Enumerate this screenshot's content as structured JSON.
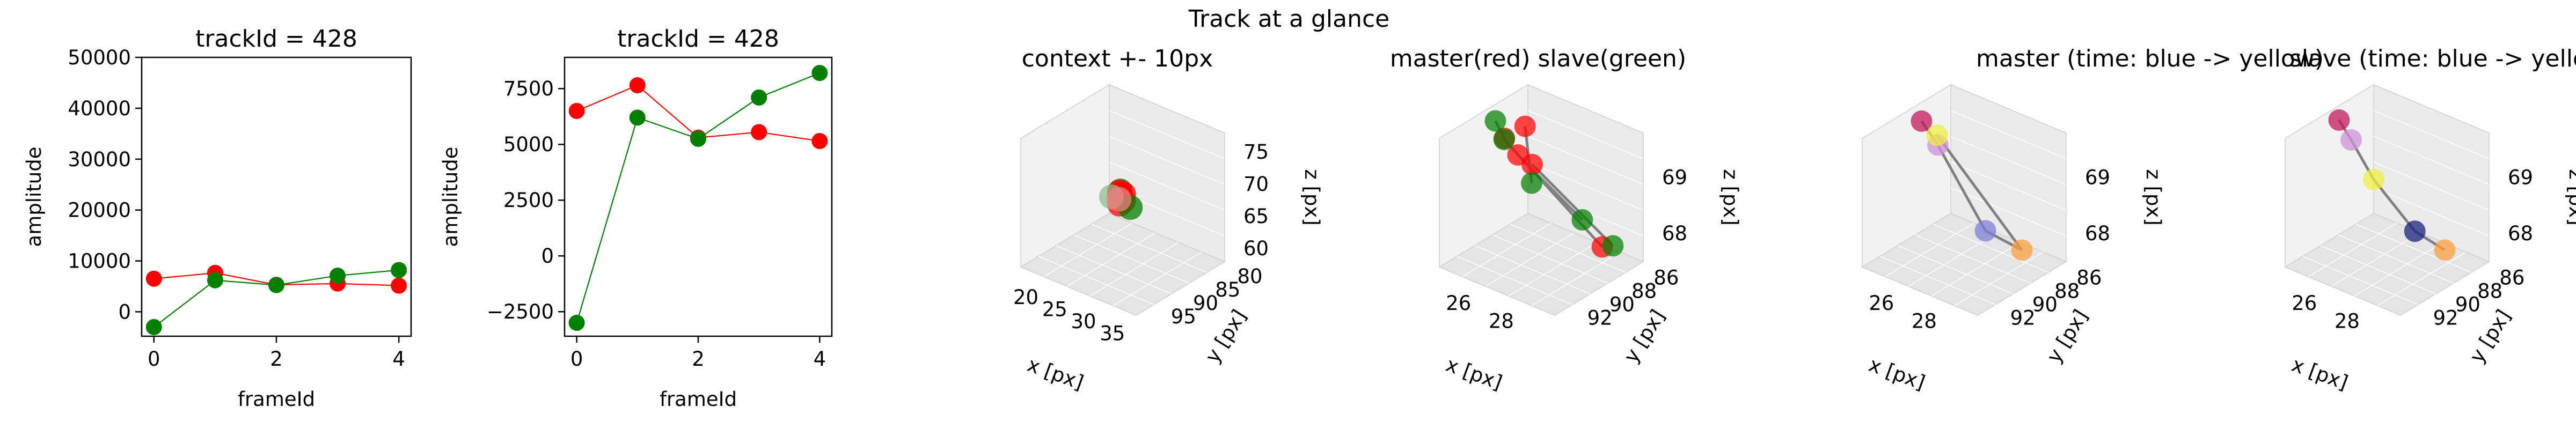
{
  "figure": {
    "suptitle": "Track at a glance"
  },
  "chart_data": [
    {
      "type": "line",
      "title": "trackId = 428",
      "xlabel": "frameId",
      "ylabel": "amplitude",
      "x": [
        0,
        1,
        2,
        3,
        4
      ],
      "xlim": [
        -0.2,
        4.2
      ],
      "ylim": [
        -4800,
        50000
      ],
      "xticks": [
        "0",
        "2",
        "4"
      ],
      "xtick_values": [
        0,
        2,
        4
      ],
      "yticks": [
        "0",
        "10000",
        "20000",
        "30000",
        "40000",
        "50000"
      ],
      "ytick_values": [
        0,
        10000,
        20000,
        30000,
        40000,
        50000
      ],
      "grid": false,
      "series": [
        {
          "color": "#ff0000",
          "values": [
            6500,
            7650,
            5300,
            5550,
            5150
          ]
        },
        {
          "color": "#008000",
          "values": [
            -3000,
            6200,
            5250,
            7100,
            8200
          ]
        }
      ]
    },
    {
      "type": "line",
      "title": "trackId = 428",
      "xlabel": "frameId",
      "ylabel": "amplitude",
      "x": [
        0,
        1,
        2,
        3,
        4
      ],
      "xlim": [
        -0.2,
        4.2
      ],
      "ylim": [
        -3600,
        8900
      ],
      "xticks": [
        "0",
        "2",
        "4"
      ],
      "xtick_values": [
        0,
        2,
        4
      ],
      "yticks": [
        "−2500",
        "0",
        "2500",
        "5000",
        "7500"
      ],
      "ytick_values": [
        -2500,
        0,
        2500,
        5000,
        7500
      ],
      "grid": false,
      "series": [
        {
          "color": "#ff0000",
          "values": [
            6500,
            7650,
            5300,
            5550,
            5150
          ]
        },
        {
          "color": "#008000",
          "values": [
            -3000,
            6200,
            5250,
            7100,
            8200
          ]
        }
      ]
    },
    {
      "type": "scatter",
      "title": "context +- 10px",
      "xlabel": "x [px]",
      "ylabel": "y [px]",
      "zlabel": "z [px]",
      "xticks": [
        "20",
        "25",
        "30",
        "35"
      ],
      "yticks": [
        "80",
        "85",
        "90",
        "95"
      ],
      "zticks": [
        "60",
        "65",
        "70",
        "75"
      ],
      "xlim": [
        18,
        38
      ],
      "ylim": [
        78,
        98
      ],
      "zlim": [
        58,
        78
      ],
      "points": [
        {
          "x": 27.2,
          "y": 87.5,
          "z": 68.9,
          "color": "#008000"
        },
        {
          "x": 27.6,
          "y": 88.2,
          "z": 69.2,
          "color": "#ff0000"
        },
        {
          "x": 27.9,
          "y": 88.6,
          "z": 69.1,
          "color": "#ff0000"
        },
        {
          "x": 28.2,
          "y": 88.8,
          "z": 68.4,
          "color": "#008000"
        },
        {
          "x": 28.4,
          "y": 89.2,
          "z": 68.0,
          "color": "#ff0000"
        },
        {
          "x": 27.4,
          "y": 87.0,
          "z": 68.3,
          "color": "#ff0000"
        },
        {
          "x": 28.0,
          "y": 87.8,
          "z": 67.8,
          "color": "#ff0000"
        },
        {
          "x": 28.1,
          "y": 86.4,
          "z": 66.2,
          "color": "#008000"
        },
        {
          "x": 27.5,
          "y": 89.9,
          "z": 69.1,
          "color": "#8fbc8f"
        },
        {
          "x": 28.6,
          "y": 89.6,
          "z": 69.0,
          "color": "#f08080"
        }
      ]
    },
    {
      "type": "scatter",
      "title": "master(red) slave(green)",
      "xlabel": "x [px]",
      "ylabel": "y [px]",
      "zlabel": "z [px]",
      "xticks": [
        "26",
        "28"
      ],
      "yticks": [
        "86",
        "88",
        "90",
        "92"
      ],
      "zticks": [
        "68",
        "69"
      ],
      "xlim": [
        24.8,
        30.2
      ],
      "ylim": [
        85,
        93
      ],
      "zlim": [
        67.5,
        69.8
      ],
      "master": [
        {
          "x": 25.6,
          "y": 86.8,
          "z": 69.4,
          "color": "#ff0000"
        },
        {
          "x": 26.2,
          "y": 88.6,
          "z": 69.2,
          "color": "#ff0000"
        },
        {
          "x": 27.8,
          "y": 90.4,
          "z": 69.5,
          "color": "#ff0000"
        },
        {
          "x": 28.9,
          "y": 86.2,
          "z": 67.7,
          "color": "#ff0000"
        },
        {
          "x": 26.6,
          "y": 90.6,
          "z": 69.8,
          "color": "#ff0000"
        }
      ],
      "slave": [
        {
          "x": 25.3,
          "y": 88.9,
          "z": 69.7,
          "color": "#008000"
        },
        {
          "x": 27.1,
          "y": 89.1,
          "z": 68.9,
          "color": "#008000"
        },
        {
          "x": 28.9,
          "y": 88.0,
          "z": 68.4,
          "color": "#008000"
        },
        {
          "x": 29.4,
          "y": 86.2,
          "z": 67.8,
          "color": "#008000"
        },
        {
          "x": 26.9,
          "y": 91.2,
          "z": 69.9,
          "color": "#008000"
        }
      ]
    },
    {
      "type": "scatter",
      "title": "master (time: blue -> yellow)",
      "xlabel": "x [px]",
      "ylabel": "y [px]",
      "zlabel": "z [px]",
      "xticks": [
        "26",
        "28"
      ],
      "yticks": [
        "86",
        "88",
        "90",
        "92"
      ],
      "zticks": [
        "68",
        "69"
      ],
      "xlim": [
        24.8,
        30.2
      ],
      "ylim": [
        85,
        93
      ],
      "zlim": [
        67.5,
        69.8
      ],
      "points": [
        {
          "x": 25.4,
          "y": 88.8,
          "z": 69.7,
          "color": "#c2185b"
        },
        {
          "x": 27.2,
          "y": 90.8,
          "z": 69.8,
          "color": "#ce93d8"
        },
        {
          "x": 28.6,
          "y": 89.2,
          "z": 68.3,
          "color": "#7e7ed6"
        },
        {
          "x": 28.7,
          "y": 86.1,
          "z": 67.6,
          "color": "#ffa040"
        },
        {
          "x": 25.2,
          "y": 87.0,
          "z": 69.2,
          "color": "#eeee44"
        }
      ]
    },
    {
      "type": "scatter",
      "title": "slave (time: blue -> yellow)",
      "xlabel": "x [px]",
      "ylabel": "y [px]",
      "zlabel": "z [px]",
      "xticks": [
        "26",
        "28"
      ],
      "yticks": [
        "86",
        "88",
        "90",
        "92"
      ],
      "zticks": [
        "68",
        "69"
      ],
      "xlim": [
        24.8,
        30.2
      ],
      "ylim": [
        85,
        93
      ],
      "zlim": [
        67.5,
        69.8
      ],
      "points": [
        {
          "x": 25.2,
          "y": 88.9,
          "z": 69.7,
          "color": "#c2185b"
        },
        {
          "x": 26.7,
          "y": 90.7,
          "z": 69.8,
          "color": "#ce93d8"
        },
        {
          "x": 27.6,
          "y": 90.4,
          "z": 69.2,
          "color": "#eeee44"
        },
        {
          "x": 28.8,
          "y": 89.0,
          "z": 68.3,
          "color": "#1a237e"
        },
        {
          "x": 28.7,
          "y": 86.1,
          "z": 67.6,
          "color": "#ffa040"
        }
      ]
    }
  ]
}
